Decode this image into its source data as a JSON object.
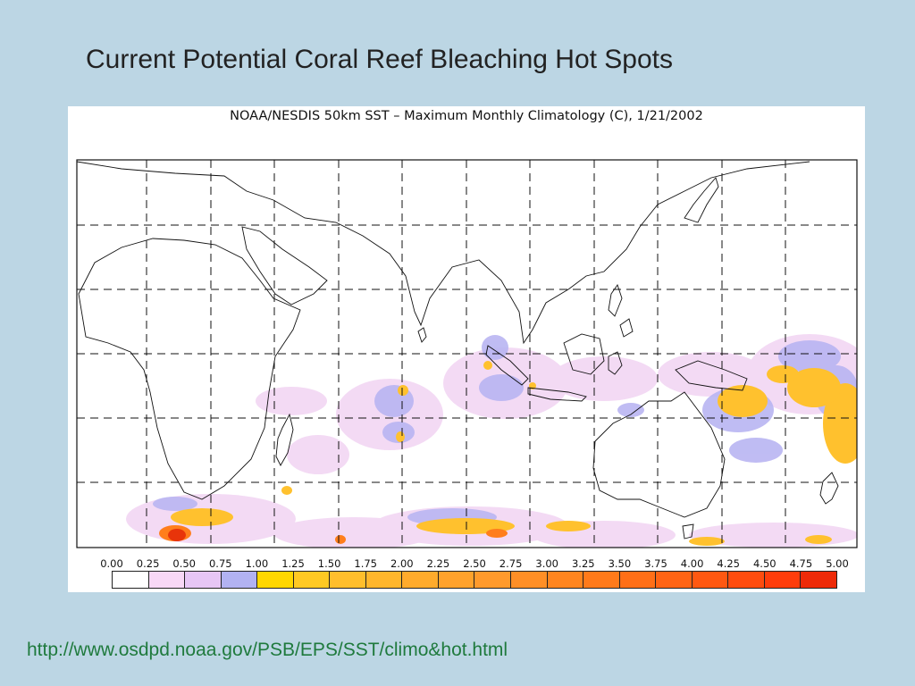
{
  "slide": {
    "title": "Current Potential Coral Reef Bleaching Hot Spots",
    "source_url": "http://www.osdpd.noaa.gov/PSB/EPS/SST/climo&hot.html"
  },
  "figure": {
    "title": "NOAA/NESDIS 50km SST – Maximum Monthly Climatology (C), 1/21/2002",
    "colorbar": {
      "ticks": [
        "0.00",
        "0.25",
        "0.50",
        "0.75",
        "1.00",
        "1.25",
        "1.50",
        "1.75",
        "2.00",
        "2.25",
        "2.50",
        "2.75",
        "3.00",
        "3.25",
        "3.50",
        "3.75",
        "4.00",
        "4.25",
        "4.50",
        "4.75",
        "5.00"
      ],
      "colors": [
        "#ffffff",
        "#f8d8f6",
        "#e7c6f5",
        "#b2b2f2",
        "#ffd700",
        "#ffc923",
        "#ffbe2c",
        "#ffb62c",
        "#ffab2c",
        "#ffa22c",
        "#ff9a2c",
        "#ff8f26",
        "#ff851f",
        "#ff7a1a",
        "#ff6f17",
        "#ff6414",
        "#ff5811",
        "#ff4c0e",
        "#ff3d0b",
        "#ee2a08"
      ]
    }
  }
}
